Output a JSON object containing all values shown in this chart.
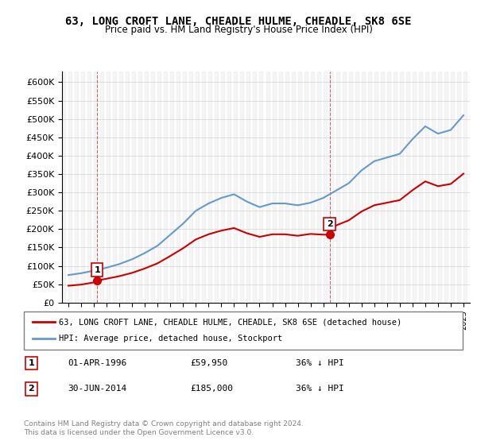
{
  "title": "63, LONG CROFT LANE, CHEADLE HULME, CHEADLE, SK8 6SE",
  "subtitle": "Price paid vs. HM Land Registry's House Price Index (HPI)",
  "legend_label_red": "63, LONG CROFT LANE, CHEADLE HULME, CHEADLE, SK8 6SE (detached house)",
  "legend_label_blue": "HPI: Average price, detached house, Stockport",
  "footer": "Contains HM Land Registry data © Crown copyright and database right 2024.\nThis data is licensed under the Open Government Licence v3.0.",
  "annotation1_label": "1",
  "annotation1_date": "01-APR-1996",
  "annotation1_price": "£59,950",
  "annotation1_hpi": "36% ↓ HPI",
  "annotation2_label": "2",
  "annotation2_date": "30-JUN-2014",
  "annotation2_price": "£185,000",
  "annotation2_hpi": "36% ↓ HPI",
  "color_red": "#cc0000",
  "color_blue": "#6699cc",
  "ylim": [
    0,
    630000
  ],
  "yticks": [
    0,
    50000,
    100000,
    150000,
    200000,
    250000,
    300000,
    350000,
    400000,
    450000,
    500000,
    550000,
    600000
  ],
  "sale1_x": 1996.25,
  "sale1_y": 59950,
  "sale2_x": 2014.5,
  "sale2_y": 185000,
  "hpi_years": [
    1994,
    1995,
    1996,
    1997,
    1998,
    1999,
    2000,
    2001,
    2002,
    2003,
    2004,
    2005,
    2006,
    2007,
    2008,
    2009,
    2010,
    2011,
    2012,
    2013,
    2014,
    2015,
    2016,
    2017,
    2018,
    2019,
    2020,
    2021,
    2022,
    2023,
    2024,
    2025
  ],
  "hpi_values": [
    75000,
    80000,
    87000,
    95000,
    105000,
    118000,
    135000,
    155000,
    185000,
    215000,
    250000,
    270000,
    285000,
    295000,
    275000,
    260000,
    270000,
    270000,
    265000,
    272000,
    285000,
    305000,
    325000,
    360000,
    385000,
    395000,
    405000,
    445000,
    480000,
    460000,
    470000,
    510000
  ],
  "red_years": [
    1994,
    1995,
    1996,
    1996.25,
    1997,
    1998,
    1999,
    2000,
    2001,
    2002,
    2003,
    2004,
    2005,
    2006,
    2007,
    2008,
    2009,
    2010,
    2011,
    2012,
    2013,
    2014,
    2014.5,
    2015,
    2016,
    2017,
    2018,
    2019,
    2020,
    2021,
    2022,
    2023,
    2024,
    2025
  ],
  "red_values": [
    46000,
    49000,
    55000,
    59950,
    65000,
    72000,
    81000,
    93000,
    107000,
    127000,
    148000,
    172000,
    186000,
    196000,
    203000,
    189000,
    179000,
    186000,
    186000,
    182000,
    187000,
    185000,
    185000,
    210000,
    224000,
    248000,
    265000,
    272000,
    279000,
    306000,
    330000,
    317000,
    323000,
    351000
  ],
  "xlim_left": 1993.5,
  "xlim_right": 2025.5,
  "xticks": [
    1994,
    1995,
    1996,
    1997,
    1998,
    1999,
    2000,
    2001,
    2002,
    2003,
    2004,
    2005,
    2006,
    2007,
    2008,
    2009,
    2010,
    2011,
    2012,
    2013,
    2014,
    2015,
    2016,
    2017,
    2018,
    2019,
    2020,
    2021,
    2022,
    2023,
    2024,
    2025
  ]
}
